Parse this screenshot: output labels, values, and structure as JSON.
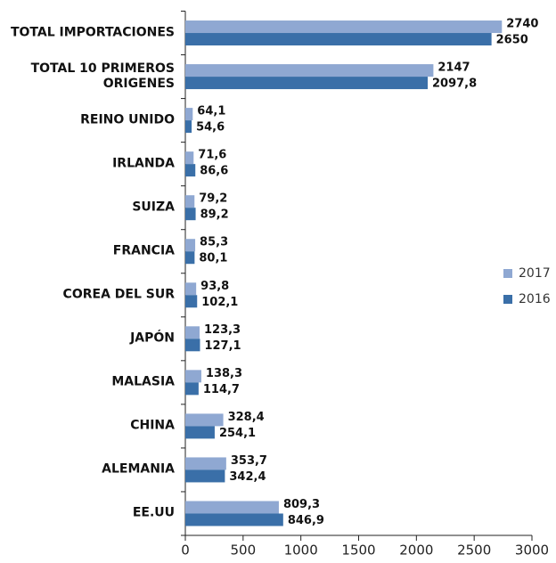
{
  "chart_data": {
    "type": "barh",
    "categories": [
      "TOTAL IMPORTACIONES",
      "TOTAL 10 PRIMEROS\nORIGENES",
      "REINO UNIDO",
      "IRLANDA",
      "SUIZA",
      "FRANCIA",
      "COREA DEL SUR",
      "JAPÓN",
      "MALASIA",
      "CHINA",
      "ALEMANIA",
      "EE.UU"
    ],
    "series": [
      {
        "name": "2017",
        "color": "#8fa8d2",
        "values": [
          2740,
          2147,
          64.1,
          71.6,
          79.2,
          85.3,
          93.8,
          123.3,
          138.3,
          328.4,
          353.7,
          809.3
        ],
        "value_labels": [
          "2740",
          "2147",
          "64,1",
          "71,6",
          "79,2",
          "85,3",
          "93,8",
          "123,3",
          "138,3",
          "328,4",
          "353,7",
          "809,3"
        ]
      },
      {
        "name": "2016",
        "color": "#3a6fa8",
        "values": [
          2650,
          2097.8,
          54.6,
          86.6,
          89.2,
          80.1,
          102.1,
          127.1,
          114.7,
          254.1,
          342.4,
          846.9
        ],
        "value_labels": [
          "2650",
          "2097,8",
          "54,6",
          "86,6",
          "89,2",
          "80,1",
          "102,1",
          "127,1",
          "114,7",
          "254,1",
          "342,4",
          "846,9"
        ]
      }
    ],
    "xlim": [
      0,
      3000
    ],
    "xticks": [
      0,
      500,
      1000,
      1500,
      2000,
      2500,
      3000
    ],
    "legend": "right"
  }
}
